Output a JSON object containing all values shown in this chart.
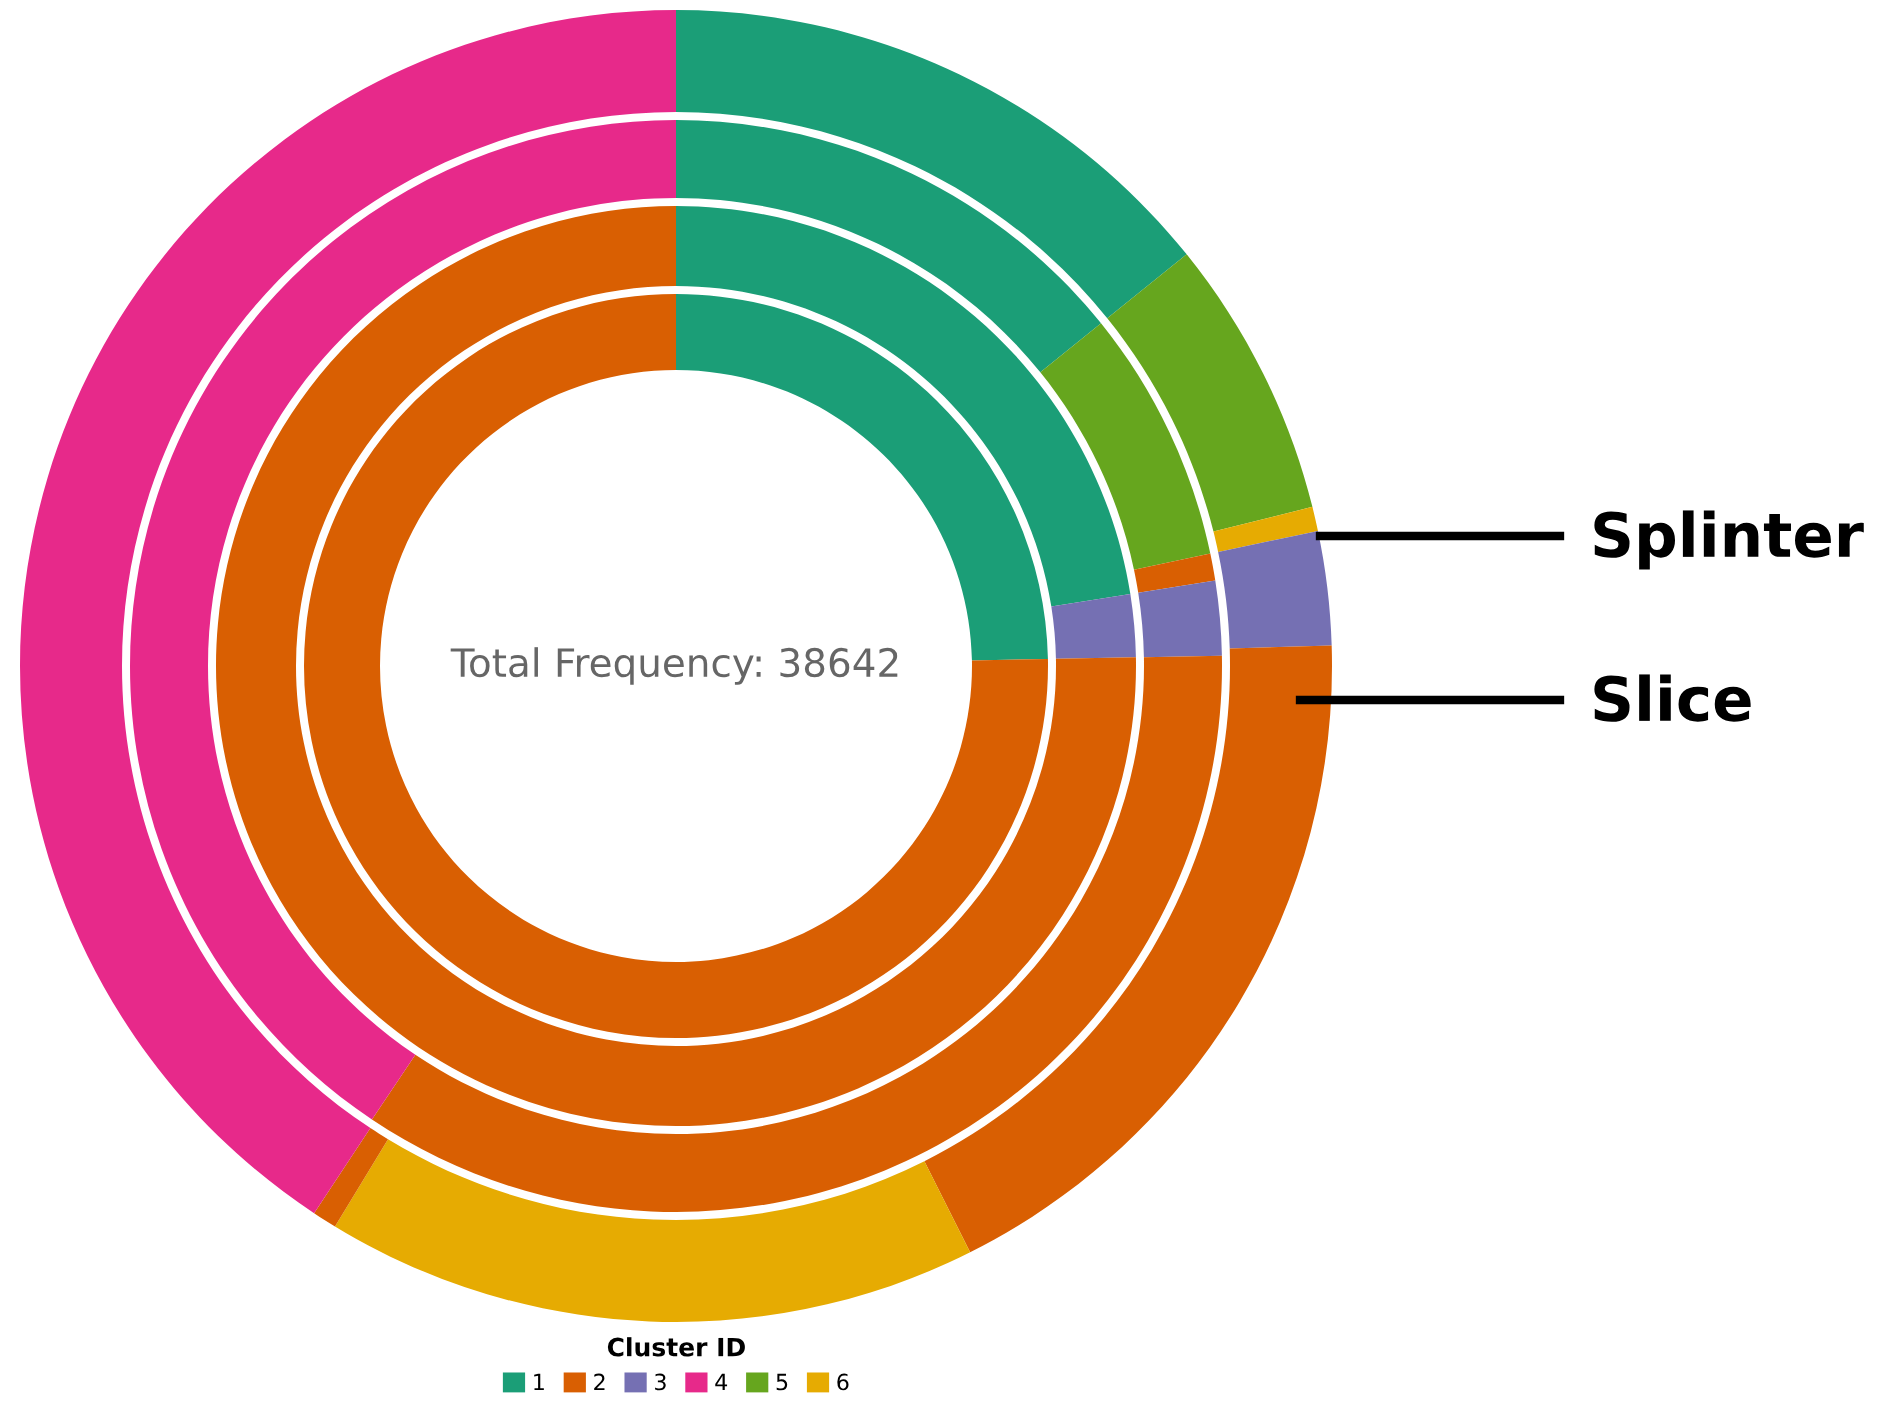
{
  "chart_data": {
    "type": "donut",
    "legend_title": "Cluster ID",
    "legend": "bottom",
    "categories": [
      "1",
      "5",
      "6",
      "2",
      "3",
      null,
      null,
      null,
      "4"
    ],
    "colors": [
      "#1b9e77",
      "#66a61e",
      "#e6ab02",
      "#d95f02",
      "#7570b3",
      "#d95f02",
      "#e6ab02",
      "#d95f02",
      "#e7298a"
    ],
    "series": [
      {
        "values": [
          24.7,
          null,
          null,
          null,
          null,
          75.3,
          null,
          null,
          null
        ]
      },
      {
        "values": [
          22.5,
          null,
          null,
          null,
          2.2,
          75.3,
          null,
          null,
          null
        ]
      },
      {
        "values": [
          14.2,
          7.5,
          null,
          0.8,
          2.2,
          34.7,
          null,
          null,
          40.6
        ]
      },
      {
        "values": [
          14.2,
          6.9,
          0.6,
          null,
          2.8,
          18.1,
          16.1,
          0.6,
          40.7
        ]
      }
    ],
    "annotations": [
      "Total Frequency: 38642",
      "Splinter",
      "Slice"
    ]
  }
}
